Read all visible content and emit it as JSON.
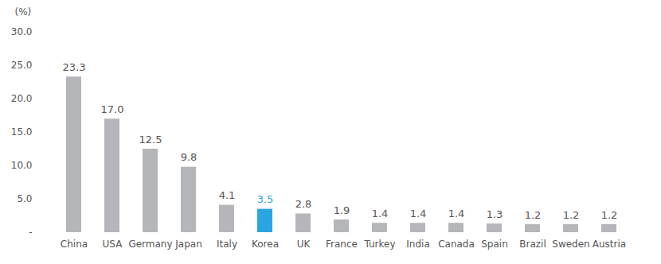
{
  "chart_data": {
    "type": "bar",
    "y_label": "(%)",
    "categories": [
      "China",
      "USA",
      "Germany",
      "Japan",
      "Italy",
      "Korea",
      "UK",
      "France",
      "Turkey",
      "India",
      "Canada",
      "Spain",
      "Brazil",
      "Sweden",
      "Austria"
    ],
    "values": [
      23.3,
      17.0,
      12.5,
      9.8,
      4.1,
      3.5,
      2.8,
      1.9,
      1.4,
      1.4,
      1.4,
      1.3,
      1.2,
      1.2,
      1.2
    ],
    "value_labels": [
      "23.3",
      "17.0",
      "12.5",
      "9.8",
      "4.1",
      "3.5",
      "2.8",
      "1.9",
      "1.4",
      "1.4",
      "1.4",
      "1.3",
      "1.2",
      "1.2",
      "1.2"
    ],
    "colors": [
      "#b5b6ba",
      "#b5b6ba",
      "#b5b6ba",
      "#b5b6ba",
      "#b5b6ba",
      "#2ba4e2",
      "#b5b6ba",
      "#b5b6ba",
      "#b5b6ba",
      "#b5b6ba",
      "#b5b6ba",
      "#b5b6ba",
      "#b5b6ba",
      "#b5b6ba",
      "#b5b6ba"
    ],
    "ylim": [
      0,
      30
    ],
    "yticks": [
      {
        "value": 0,
        "label": "-"
      },
      {
        "value": 5,
        "label": "5.0"
      },
      {
        "value": 10,
        "label": "10.0"
      },
      {
        "value": 15,
        "label": "15.0"
      },
      {
        "value": 20,
        "label": "20.0"
      },
      {
        "value": 25,
        "label": "25.0"
      },
      {
        "value": 30,
        "label": "30.0"
      }
    ],
    "grid": false,
    "data_labels": true
  }
}
